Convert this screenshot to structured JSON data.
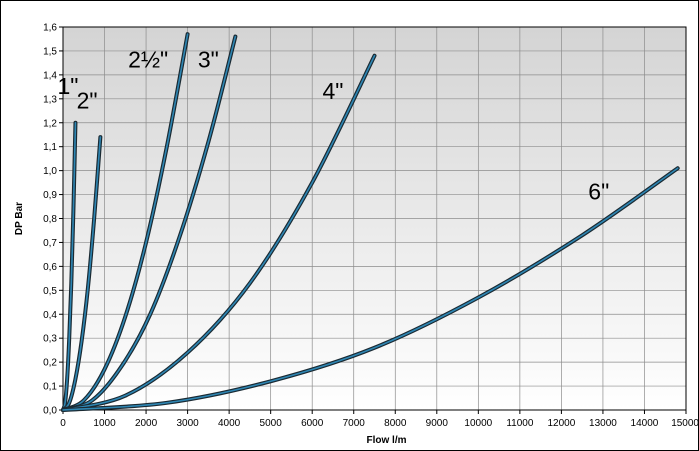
{
  "chart_data": {
    "type": "line",
    "xlabel": "Flow l/m",
    "ylabel": "DP Bar",
    "xlim": [
      0,
      15000
    ],
    "ylim": [
      0,
      1.6
    ],
    "x_ticks": [
      "0",
      "1000",
      "2000",
      "3000",
      "4000",
      "5000",
      "6000",
      "7000",
      "8000",
      "9000",
      "10000",
      "11000",
      "12000",
      "13000",
      "14000",
      "15000"
    ],
    "y_ticks": [
      "0,0",
      "0,1",
      "0,2",
      "0,3",
      "0,4",
      "0,5",
      "0,6",
      "0,7",
      "0,8",
      "0,9",
      "1,0",
      "1,1",
      "1,2",
      "1,3",
      "1,4",
      "1,5",
      "1,6"
    ],
    "grid": true,
    "series": [
      {
        "name": "1\"",
        "label_at": [
          120,
          1.32
        ],
        "x": [
          0,
          50,
          100,
          150,
          200,
          250,
          300
        ],
        "y": [
          0,
          0.03,
          0.13,
          0.3,
          0.53,
          0.83,
          1.2
        ]
      },
      {
        "name": "2\"",
        "label_at": [
          580,
          1.26
        ],
        "x": [
          0,
          150,
          300,
          450,
          600,
          750,
          900
        ],
        "y": [
          0,
          0.03,
          0.13,
          0.29,
          0.51,
          0.8,
          1.14
        ]
      },
      {
        "name": "2½\"",
        "label_at": [
          2050,
          1.43
        ],
        "x": [
          0,
          500,
          1000,
          1500,
          2000,
          2500,
          3000
        ],
        "y": [
          0,
          0.04,
          0.17,
          0.39,
          0.7,
          1.1,
          1.57
        ]
      },
      {
        "name": "3\"",
        "label_at": [
          3500,
          1.43
        ],
        "x": [
          0,
          700,
          1400,
          2100,
          2800,
          3500,
          4150
        ],
        "y": [
          0,
          0.04,
          0.18,
          0.4,
          0.72,
          1.12,
          1.56
        ]
      },
      {
        "name": "4\"",
        "label_at": [
          6500,
          1.3
        ],
        "x": [
          0,
          1500,
          3000,
          4500,
          6000,
          7500
        ],
        "y": [
          0,
          0.06,
          0.24,
          0.53,
          0.95,
          1.48
        ]
      },
      {
        "name": "6\"",
        "label_at": [
          12900,
          0.88
        ],
        "x": [
          0,
          2500,
          5000,
          7500,
          10000,
          12500,
          14800
        ],
        "y": [
          0,
          0.03,
          0.12,
          0.26,
          0.47,
          0.73,
          1.01
        ]
      }
    ],
    "colors": {
      "line_outer": "#1a2a33",
      "line_inner": "#2e86b3",
      "plot_top": "#d4d4d4",
      "plot_bottom": "#ffffff",
      "grid": "#8c8c8c"
    }
  }
}
